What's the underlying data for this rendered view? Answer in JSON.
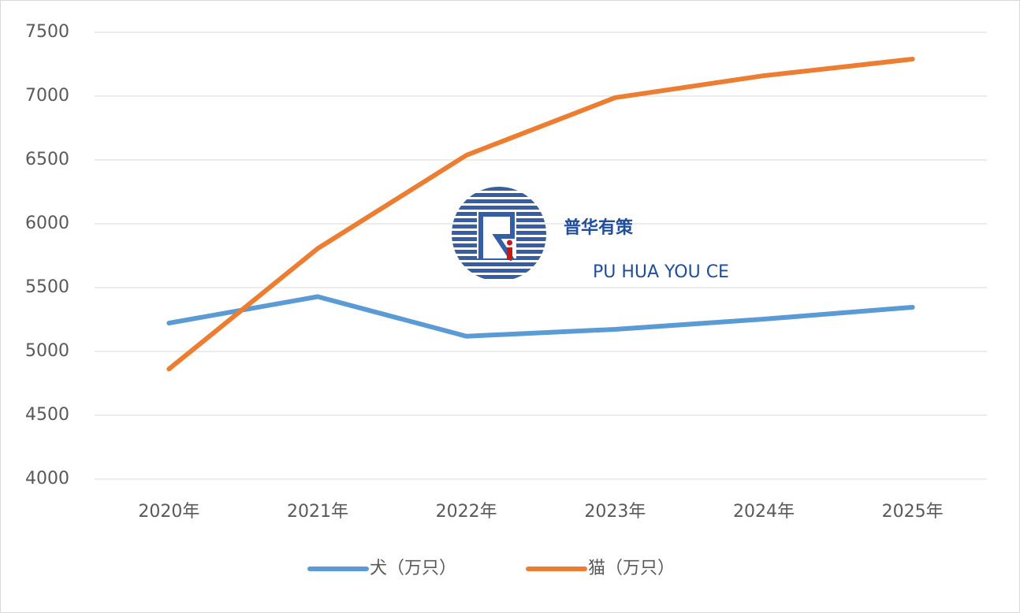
{
  "chart_data": {
    "type": "line",
    "categories": [
      "2020年",
      "2021年",
      "2022年",
      "2023年",
      "2024年",
      "2025年"
    ],
    "series": [
      {
        "name": "犬（万只）",
        "color": "#5b9bd5",
        "values": [
          5222,
          5429,
          5119,
          5173,
          5253,
          5346
        ]
      },
      {
        "name": "猫（万只）",
        "color": "#ed7d31",
        "values": [
          4862,
          5806,
          6537,
          6988,
          7160,
          7290
        ]
      }
    ],
    "ylim": [
      4000,
      7500
    ],
    "yticks": [
      4000,
      4500,
      5000,
      5500,
      6000,
      6500,
      7000,
      7500
    ],
    "grid": true,
    "legend": "bottom",
    "watermark": {
      "title": "普华有策",
      "subtitle": "PU HUA YOU CE"
    }
  }
}
